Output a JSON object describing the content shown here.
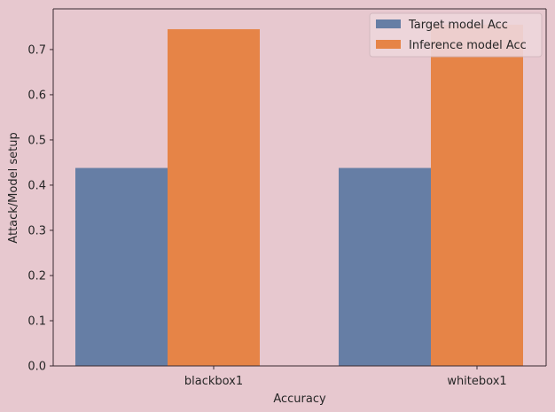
{
  "colors": {
    "figure_bg": "#e7c8cf",
    "axes_bg": "#e7c8cf",
    "axis_line": "#3a2a30",
    "text": "#262626",
    "legend_bg": "#eed7dc",
    "legend_border": "#d0b8be"
  },
  "chart_data": {
    "type": "bar",
    "categories": [
      "blackbox1",
      "whitebox1"
    ],
    "series": [
      {
        "name": "Target model Acc",
        "color": "#667ea5",
        "values": [
          0.438,
          0.438
        ]
      },
      {
        "name": "Inference model Acc",
        "color": "#e68447",
        "values": [
          0.745,
          0.755
        ]
      }
    ],
    "xlabel": "Accuracy",
    "ylabel": "Attack/Model setup",
    "ylim": [
      0,
      0.79
    ],
    "yticks": [
      0.0,
      0.1,
      0.2,
      0.3,
      0.4,
      0.5,
      0.6,
      0.7
    ],
    "ytick_labels": [
      "0.0",
      "0.1",
      "0.2",
      "0.3",
      "0.4",
      "0.5",
      "0.6",
      "0.7"
    ],
    "grid": false,
    "legend_position": "top-right"
  }
}
